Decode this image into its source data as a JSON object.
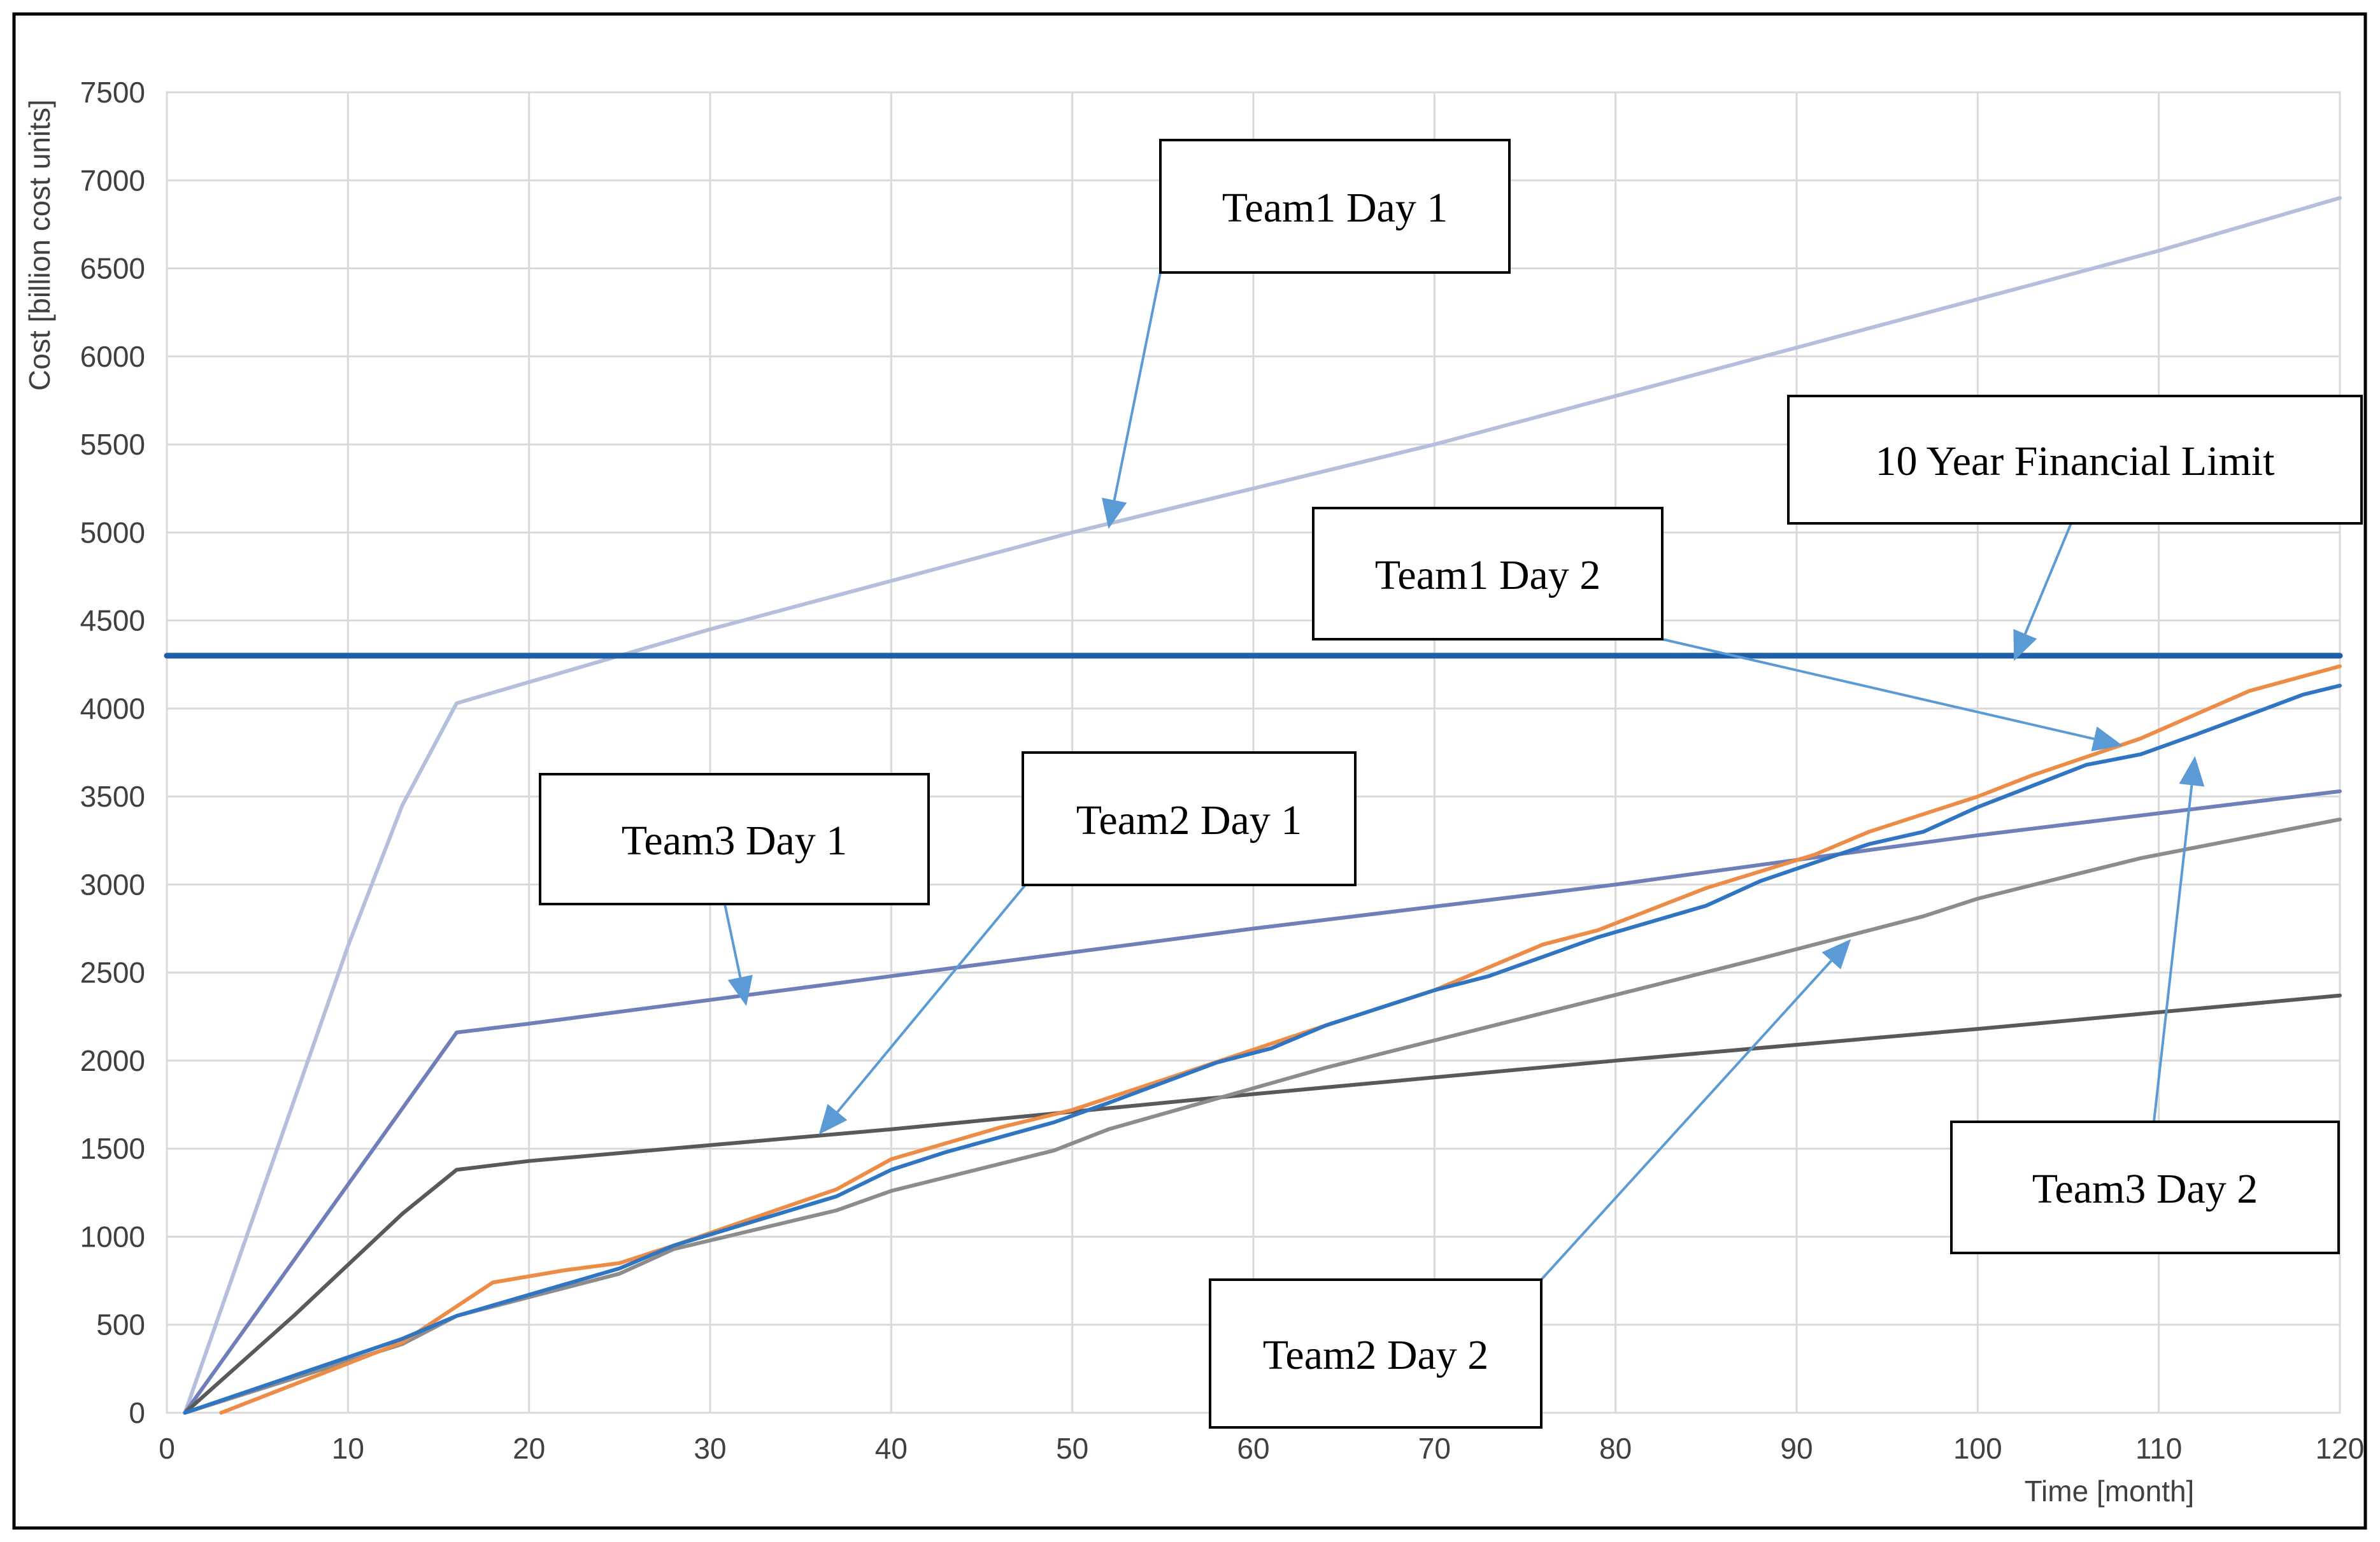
{
  "chart_data": {
    "type": "line",
    "title": "",
    "xlabel": "Time [month]",
    "ylabel": "Cost [billion cost units]",
    "xlim": [
      0,
      120
    ],
    "ylim": [
      0,
      7500
    ],
    "x_ticks": [
      0,
      10,
      20,
      30,
      40,
      50,
      60,
      70,
      80,
      90,
      100,
      110,
      120
    ],
    "y_ticks": [
      0,
      500,
      1000,
      1500,
      2000,
      2500,
      3000,
      3500,
      4000,
      4500,
      5000,
      5500,
      6000,
      6500,
      7000,
      7500
    ],
    "grid": true,
    "legend": "none",
    "series": [
      {
        "name": "Team1 Day 1",
        "color": "#b4bfdc",
        "points": [
          [
            1,
            0
          ],
          [
            10,
            2650
          ],
          [
            13,
            3450
          ],
          [
            16,
            4030
          ],
          [
            20,
            4150
          ],
          [
            30,
            4450
          ],
          [
            50,
            5000
          ],
          [
            70,
            5500
          ],
          [
            90,
            6050
          ],
          [
            110,
            6600
          ],
          [
            120,
            6900
          ]
        ]
      },
      {
        "name": "Team3 Day 1",
        "color": "#6f7fba",
        "points": [
          [
            1,
            0
          ],
          [
            16,
            2160
          ],
          [
            20,
            2210
          ],
          [
            40,
            2480
          ],
          [
            60,
            2750
          ],
          [
            80,
            3000
          ],
          [
            100,
            3280
          ],
          [
            120,
            3530
          ]
        ]
      },
      {
        "name": "Team2 Day 1",
        "color": "#595959",
        "points": [
          [
            1,
            0
          ],
          [
            7,
            550
          ],
          [
            13,
            1130
          ],
          [
            16,
            1380
          ],
          [
            20,
            1430
          ],
          [
            40,
            1610
          ],
          [
            60,
            1810
          ],
          [
            80,
            2000
          ],
          [
            100,
            2180
          ],
          [
            120,
            2370
          ]
        ]
      },
      {
        "name": "Team2 Day 2",
        "color": "#8c8c8c",
        "points": [
          [
            1,
            0
          ],
          [
            13,
            390
          ],
          [
            16,
            550
          ],
          [
            25,
            790
          ],
          [
            28,
            930
          ],
          [
            37,
            1150
          ],
          [
            40,
            1260
          ],
          [
            49,
            1490
          ],
          [
            52,
            1610
          ],
          [
            64,
            1960
          ],
          [
            76,
            2270
          ],
          [
            88,
            2580
          ],
          [
            97,
            2820
          ],
          [
            100,
            2920
          ],
          [
            109,
            3150
          ],
          [
            120,
            3370
          ]
        ]
      },
      {
        "name": "Team1 Day 2",
        "color": "#ed8c46",
        "points": [
          [
            3,
            0
          ],
          [
            13,
            400
          ],
          [
            18,
            740
          ],
          [
            22,
            810
          ],
          [
            25,
            850
          ],
          [
            28,
            950
          ],
          [
            37,
            1270
          ],
          [
            40,
            1440
          ],
          [
            46,
            1620
          ],
          [
            50,
            1720
          ],
          [
            55,
            1890
          ],
          [
            64,
            2200
          ],
          [
            70,
            2400
          ],
          [
            76,
            2660
          ],
          [
            79,
            2740
          ],
          [
            85,
            2980
          ],
          [
            91,
            3170
          ],
          [
            94,
            3300
          ],
          [
            100,
            3500
          ],
          [
            103,
            3620
          ],
          [
            109,
            3830
          ],
          [
            115,
            4100
          ],
          [
            120,
            4240
          ]
        ]
      },
      {
        "name": "Team3 Day 2",
        "color": "#2f75c2",
        "points": [
          [
            1,
            0
          ],
          [
            13,
            420
          ],
          [
            16,
            550
          ],
          [
            25,
            820
          ],
          [
            28,
            950
          ],
          [
            37,
            1230
          ],
          [
            40,
            1380
          ],
          [
            43,
            1480
          ],
          [
            49,
            1650
          ],
          [
            52,
            1760
          ],
          [
            58,
            1990
          ],
          [
            61,
            2070
          ],
          [
            64,
            2200
          ],
          [
            70,
            2400
          ],
          [
            73,
            2480
          ],
          [
            79,
            2700
          ],
          [
            85,
            2880
          ],
          [
            88,
            3020
          ],
          [
            94,
            3230
          ],
          [
            97,
            3300
          ],
          [
            100,
            3440
          ],
          [
            106,
            3680
          ],
          [
            109,
            3740
          ],
          [
            112,
            3850
          ],
          [
            118,
            4080
          ],
          [
            120,
            4130
          ]
        ]
      },
      {
        "name": "10 Year Financial Limit",
        "color": "#1f5fa8",
        "points": [
          [
            0,
            4300
          ],
          [
            120,
            4300
          ]
        ]
      }
    ],
    "annotations": [
      {
        "text": "Team1 Day 1",
        "arrow_to": [
          52,
          5020
        ]
      },
      {
        "text": "10 Year Financial Limit",
        "arrow_to": [
          102,
          4270
        ]
      },
      {
        "text": "Team1 Day 2",
        "arrow_to": [
          108,
          3790
        ]
      },
      {
        "text": "Team3 Day 1",
        "arrow_to": [
          32,
          2310
        ]
      },
      {
        "text": "Team2 Day 1",
        "arrow_to": [
          36,
          1580
        ]
      },
      {
        "text": "Team3 Day 2",
        "arrow_to": [
          112,
          3730
        ]
      },
      {
        "text": "Team2 Day 2",
        "arrow_to": [
          93,
          2690
        ]
      }
    ]
  }
}
